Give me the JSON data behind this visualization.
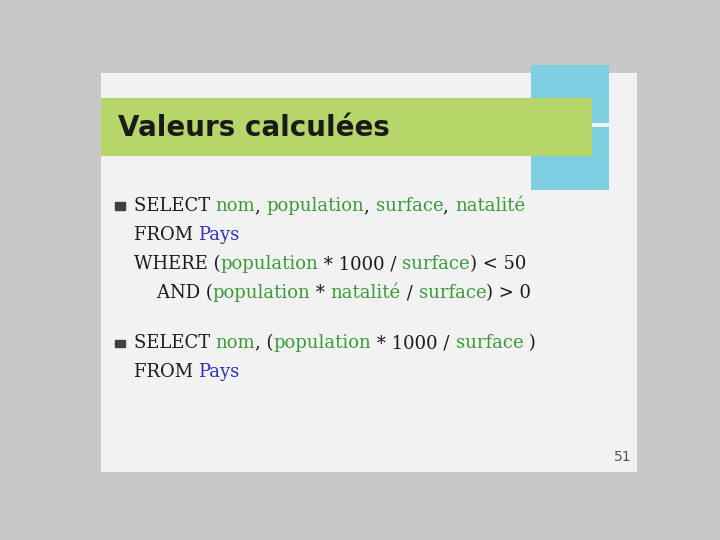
{
  "title": "Valeurs calculées",
  "title_color": "#1a1a1a",
  "title_bg_color": "#b5d668",
  "slide_bg_color": "#c8c8c8",
  "content_bg_color": "#f2f2f2",
  "teal_box_color": "#7ecfe0",
  "bullet_color": "#404040",
  "page_num": "51",
  "font_size": 13,
  "title_font_size": 20,
  "lines": [
    [
      {
        "text": "SELECT ",
        "color": "#1a1a1a",
        "bold": false
      },
      {
        "text": "nom",
        "color": "#3a9a3a",
        "bold": false
      },
      {
        "text": ", ",
        "color": "#1a1a1a",
        "bold": false
      },
      {
        "text": "population",
        "color": "#3a9a3a",
        "bold": false
      },
      {
        "text": ", ",
        "color": "#1a1a1a",
        "bold": false
      },
      {
        "text": "surface",
        "color": "#3a9a3a",
        "bold": false
      },
      {
        "text": ", ",
        "color": "#1a1a1a",
        "bold": false
      },
      {
        "text": "natalité",
        "color": "#3a9a3a",
        "bold": false
      }
    ],
    [
      {
        "text": "FROM ",
        "color": "#1a1a1a",
        "bold": false
      },
      {
        "text": "Pays",
        "color": "#3030bb",
        "bold": false
      }
    ],
    [
      {
        "text": "WHERE (",
        "color": "#1a1a1a",
        "bold": false
      },
      {
        "text": "population",
        "color": "#3a9a3a",
        "bold": false
      },
      {
        "text": " * 1000 / ",
        "color": "#1a1a1a",
        "bold": false
      },
      {
        "text": "surface",
        "color": "#3a9a3a",
        "bold": false
      },
      {
        "text": ") < 50",
        "color": "#1a1a1a",
        "bold": false
      }
    ],
    [
      {
        "text": "    AND (",
        "color": "#1a1a1a",
        "bold": false
      },
      {
        "text": "population",
        "color": "#3a9a3a",
        "bold": false
      },
      {
        "text": " * ",
        "color": "#1a1a1a",
        "bold": false
      },
      {
        "text": "natalité",
        "color": "#3a9a3a",
        "bold": false
      },
      {
        "text": " / ",
        "color": "#1a1a1a",
        "bold": false
      },
      {
        "text": "surface",
        "color": "#3a9a3a",
        "bold": false
      },
      {
        "text": ") > 0",
        "color": "#1a1a1a",
        "bold": false
      }
    ]
  ],
  "lines2": [
    [
      {
        "text": "SELECT ",
        "color": "#1a1a1a",
        "bold": false
      },
      {
        "text": "nom",
        "color": "#3a9a3a",
        "bold": false
      },
      {
        "text": ", (",
        "color": "#1a1a1a",
        "bold": false
      },
      {
        "text": "population",
        "color": "#3a9a3a",
        "bold": false
      },
      {
        "text": " * 1000 / ",
        "color": "#1a1a1a",
        "bold": false
      },
      {
        "text": "surface",
        "color": "#3a9a3a",
        "bold": false
      },
      {
        "text": " )",
        "color": "#1a1a1a",
        "bold": false
      }
    ],
    [
      {
        "text": "FROM ",
        "color": "#1a1a1a",
        "bold": false
      },
      {
        "text": "Pays",
        "color": "#3030bb",
        "bold": false
      }
    ]
  ]
}
